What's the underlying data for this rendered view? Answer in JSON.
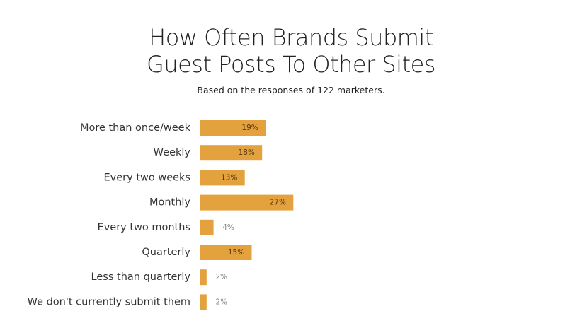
{
  "chart_data": {
    "type": "bar",
    "orientation": "horizontal",
    "title": "How Often Brands Submit\nGuest Posts To Other Sites",
    "subtitle": "Based on the responses of 122 marketers.",
    "categories": [
      "More than once/week",
      "Weekly",
      "Every two weeks",
      "Monthly",
      "Every two months",
      "Quarterly",
      "Less than quarterly",
      "We don't currently submit them"
    ],
    "values": [
      19,
      18,
      13,
      27,
      4,
      15,
      2,
      2
    ],
    "value_labels": [
      "19%",
      "18%",
      "13%",
      "27%",
      "4%",
      "15%",
      "2%",
      "2%"
    ],
    "color": "#e3a23e"
  }
}
